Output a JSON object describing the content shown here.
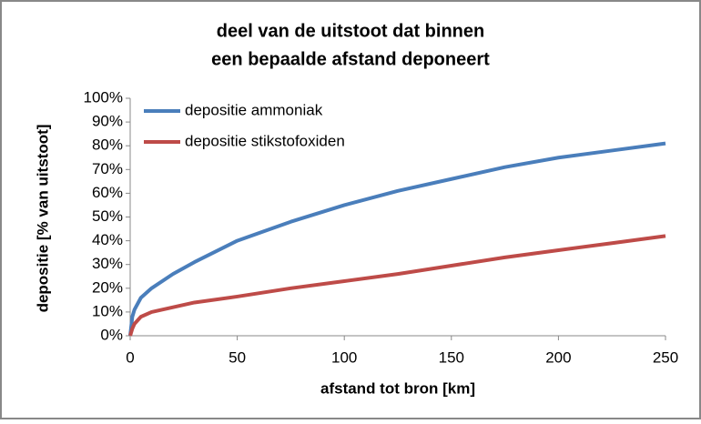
{
  "chart_data": {
    "type": "line",
    "title": [
      "deel van de uitstoot dat binnen",
      "een bepaalde afstand deponeert"
    ],
    "x_label": "afstand tot bron [km]",
    "y_label": "depositie [% van uitstoot]",
    "x": [
      0,
      1,
      2,
      5,
      10,
      20,
      30,
      50,
      75,
      100,
      125,
      150,
      175,
      200,
      225,
      250
    ],
    "series": [
      {
        "name": "depositie ammoniak",
        "color": "#4a7ebb",
        "values": [
          0,
          8,
          11,
          16,
          20,
          26,
          31,
          40,
          48,
          55,
          61,
          66,
          71,
          75,
          78,
          81
        ]
      },
      {
        "name": "depositie stikstofoxiden",
        "color": "#be4b48",
        "values": [
          0,
          3,
          5,
          8,
          10,
          12,
          14,
          16.5,
          20,
          23,
          26,
          29.5,
          33,
          36,
          39,
          42
        ]
      }
    ],
    "xlim": [
      0,
      250
    ],
    "xticks": [
      0,
      50,
      100,
      150,
      200,
      250
    ],
    "ylim": [
      0,
      100
    ],
    "yticks": [
      {
        "value": 0,
        "label": "0%"
      },
      {
        "value": 10,
        "label": "10%"
      },
      {
        "value": 20,
        "label": "20%"
      },
      {
        "value": 30,
        "label": "30%"
      },
      {
        "value": 40,
        "label": "40%"
      },
      {
        "value": 50,
        "label": "50%"
      },
      {
        "value": 60,
        "label": "60%"
      },
      {
        "value": 70,
        "label": "70%"
      },
      {
        "value": 80,
        "label": "80%"
      },
      {
        "value": 90,
        "label": "90%"
      },
      {
        "value": 100,
        "label": "100%"
      }
    ],
    "legend": "upper left",
    "grid": false
  }
}
